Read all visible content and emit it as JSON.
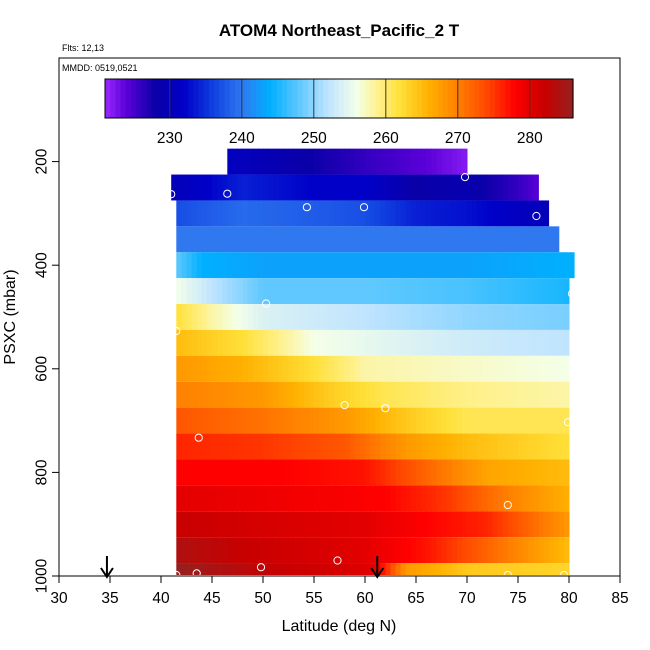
{
  "chart_data": {
    "type": "heatmap",
    "title": "ATOM4 Northeast_Pacific_2 T",
    "flights_note": "Flts: 12,13",
    "date_note": "MMDD: 0519,0521",
    "xlabel": "Latitude (deg N)",
    "ylabel": "PSXC (mbar)",
    "xlim": [
      30,
      85
    ],
    "ylim": [
      1000,
      0
    ],
    "x_ticks": [
      "30",
      "35",
      "40",
      "45",
      "50",
      "55",
      "60",
      "65",
      "70",
      "75",
      "80",
      "85"
    ],
    "y_ticks": [
      "200",
      "400",
      "600",
      "800",
      "1000"
    ],
    "colorbar": {
      "range": [
        221,
        286
      ],
      "ticks": [
        "230",
        "240",
        "250",
        "260",
        "270",
        "280"
      ],
      "stops": [
        {
          "v": 221,
          "c": "#9a28ff"
        },
        {
          "v": 224,
          "c": "#5a00d8"
        },
        {
          "v": 228,
          "c": "#0a00a8"
        },
        {
          "v": 232,
          "c": "#0000c8"
        },
        {
          "v": 236,
          "c": "#1040e0"
        },
        {
          "v": 240,
          "c": "#2f78f0"
        },
        {
          "v": 244,
          "c": "#00b0ff"
        },
        {
          "v": 248,
          "c": "#60c8ff"
        },
        {
          "v": 252,
          "c": "#c0e4ff"
        },
        {
          "v": 256,
          "c": "#f4ffe8"
        },
        {
          "v": 259,
          "c": "#fff088"
        },
        {
          "v": 262,
          "c": "#ffe038"
        },
        {
          "v": 266,
          "c": "#ffb000"
        },
        {
          "v": 270,
          "c": "#ff8000"
        },
        {
          "v": 274,
          "c": "#ff4800"
        },
        {
          "v": 278,
          "c": "#ff0000"
        },
        {
          "v": 282,
          "c": "#c80000"
        },
        {
          "v": 286,
          "c": "#962020"
        }
      ]
    },
    "pressure_levels": [
      200,
      250,
      300,
      350,
      400,
      450,
      500,
      550,
      600,
      650,
      700,
      750,
      800,
      850,
      900,
      950,
      1000
    ],
    "layers": [
      {
        "p": 200,
        "lat0": 46.5,
        "lat1": 70,
        "pts": [
          [
            46.5,
            231
          ],
          [
            52,
            229
          ],
          [
            60,
            226
          ],
          [
            66,
            224
          ],
          [
            70,
            222
          ]
        ]
      },
      {
        "p": 250,
        "lat0": 41,
        "lat1": 77,
        "pts": [
          [
            41,
            230
          ],
          [
            48,
            234
          ],
          [
            55,
            232
          ],
          [
            60,
            232
          ],
          [
            65,
            228
          ],
          [
            70,
            229
          ],
          [
            75,
            226
          ],
          [
            77,
            224
          ]
        ]
      },
      {
        "p": 300,
        "lat0": 41.5,
        "lat1": 78,
        "pts": [
          [
            41.5,
            237
          ],
          [
            48,
            239
          ],
          [
            55,
            238
          ],
          [
            60,
            237
          ],
          [
            65,
            234
          ],
          [
            70,
            233
          ],
          [
            75,
            231
          ],
          [
            78,
            230
          ]
        ]
      },
      {
        "p": 350,
        "lat0": 41.5,
        "lat1": 79,
        "pts": [
          [
            41.5,
            240
          ],
          [
            50,
            240
          ],
          [
            60,
            240
          ],
          [
            70,
            240
          ],
          [
            79,
            240
          ]
        ]
      },
      {
        "p": 400,
        "lat0": 41.5,
        "lat1": 80.5,
        "pts": [
          [
            41.5,
            248
          ],
          [
            44,
            244
          ],
          [
            50,
            243
          ],
          [
            60,
            243
          ],
          [
            70,
            243
          ],
          [
            80.5,
            244
          ]
        ]
      },
      {
        "p": 450,
        "lat0": 41.5,
        "lat1": 80,
        "pts": [
          [
            41.5,
            256
          ],
          [
            45,
            252
          ],
          [
            50,
            248
          ],
          [
            60,
            248
          ],
          [
            70,
            247
          ],
          [
            80,
            245
          ]
        ]
      },
      {
        "p": 500,
        "lat0": 41.5,
        "lat1": 80,
        "pts": [
          [
            41.5,
            262
          ],
          [
            45,
            258
          ],
          [
            50,
            254
          ],
          [
            60,
            252
          ],
          [
            70,
            250
          ],
          [
            80,
            249
          ]
        ]
      },
      {
        "p": 550,
        "lat0": 41.5,
        "lat1": 80,
        "pts": [
          [
            41.5,
            265
          ],
          [
            48,
            262
          ],
          [
            55,
            256
          ],
          [
            60,
            255
          ],
          [
            70,
            253
          ],
          [
            80,
            252
          ]
        ]
      },
      {
        "p": 600,
        "lat0": 41.5,
        "lat1": 80,
        "pts": [
          [
            41.5,
            268
          ],
          [
            48,
            266
          ],
          [
            55,
            262
          ],
          [
            60,
            258
          ],
          [
            70,
            257
          ],
          [
            80,
            256
          ]
        ]
      },
      {
        "p": 650,
        "lat0": 41.5,
        "lat1": 80,
        "pts": [
          [
            41.5,
            270
          ],
          [
            50,
            268
          ],
          [
            56,
            264
          ],
          [
            62,
            261
          ],
          [
            70,
            259
          ],
          [
            80,
            258
          ]
        ]
      },
      {
        "p": 700,
        "lat0": 41.5,
        "lat1": 80,
        "pts": [
          [
            41.5,
            273
          ],
          [
            50,
            271
          ],
          [
            58,
            268
          ],
          [
            64,
            264
          ],
          [
            70,
            261
          ],
          [
            80,
            261
          ]
        ]
      },
      {
        "p": 750,
        "lat0": 41.5,
        "lat1": 80,
        "pts": [
          [
            41.5,
            276
          ],
          [
            50,
            275
          ],
          [
            58,
            273
          ],
          [
            64,
            268
          ],
          [
            70,
            265
          ],
          [
            80,
            262
          ]
        ]
      },
      {
        "p": 800,
        "lat0": 41.5,
        "lat1": 80,
        "pts": [
          [
            41.5,
            278
          ],
          [
            52,
            278
          ],
          [
            60,
            277
          ],
          [
            66,
            272
          ],
          [
            72,
            267
          ],
          [
            80,
            265
          ]
        ]
      },
      {
        "p": 850,
        "lat0": 41.5,
        "lat1": 80,
        "pts": [
          [
            41.5,
            280
          ],
          [
            52,
            279
          ],
          [
            62,
            278
          ],
          [
            68,
            275
          ],
          [
            74,
            270
          ],
          [
            80,
            266
          ]
        ]
      },
      {
        "p": 900,
        "lat0": 41.5,
        "lat1": 80,
        "pts": [
          [
            41.5,
            282
          ],
          [
            50,
            281
          ],
          [
            60,
            280
          ],
          [
            66,
            278
          ],
          [
            72,
            276
          ],
          [
            80,
            268
          ]
        ]
      },
      {
        "p": 950,
        "lat0": 41.5,
        "lat1": 80,
        "pts": [
          [
            41.5,
            284
          ],
          [
            48,
            282
          ],
          [
            55,
            281
          ],
          [
            60,
            280
          ],
          [
            66,
            277
          ],
          [
            72,
            272
          ],
          [
            80,
            265
          ]
        ]
      },
      {
        "p": 1000,
        "lat0": 41.5,
        "lat1": 80,
        "pts": [
          [
            41.5,
            286
          ],
          [
            46,
            284
          ],
          [
            52,
            282
          ],
          [
            58,
            281
          ],
          [
            61,
            280
          ],
          [
            64,
            268
          ],
          [
            70,
            264
          ],
          [
            80,
            263
          ]
        ]
      }
    ],
    "sample_points": [
      [
        69.8,
        230
      ],
      [
        46.5,
        262
      ],
      [
        54.3,
        288
      ],
      [
        59.9,
        288
      ],
      [
        41,
        263
      ],
      [
        76.8,
        305
      ],
      [
        80.3,
        455
      ],
      [
        50.3,
        474
      ],
      [
        41.5,
        527
      ],
      [
        58,
        670
      ],
      [
        62,
        676
      ],
      [
        79.9,
        703
      ],
      [
        43.7,
        733
      ],
      [
        74,
        863
      ],
      [
        57.3,
        970
      ],
      [
        49.8,
        983
      ],
      [
        41.5,
        998
      ],
      [
        43.5,
        995
      ],
      [
        74,
        998
      ],
      [
        79.5,
        998
      ]
    ],
    "arrows_lat": [
      34.7,
      61.2
    ]
  }
}
